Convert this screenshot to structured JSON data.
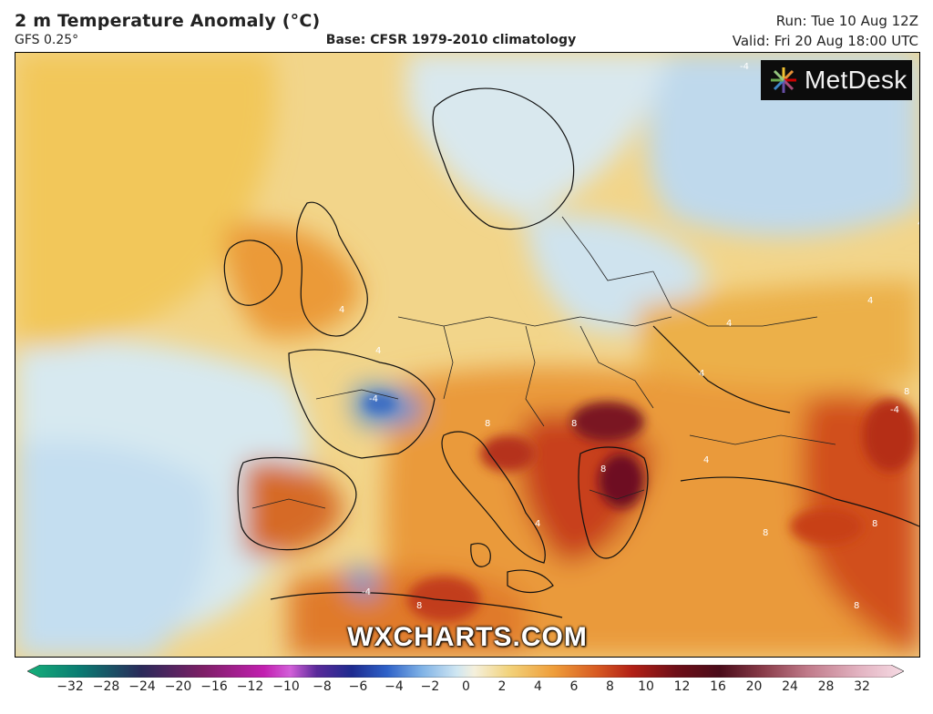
{
  "header": {
    "title": "2 m Temperature Anomaly (°C)",
    "model": "GFS 0.25°",
    "base": "Base: CFSR 1979-2010 climatology",
    "run": "Run: Tue 10 Aug 12Z",
    "valid": "Valid: Fri 20 Aug 18:00 UTC"
  },
  "map": {
    "brand": "MetDesk",
    "watermark": "WXCHARTS.COM",
    "contour_labels": [
      "-4",
      "-4",
      "-4",
      "4",
      "4",
      "4",
      "4",
      "4",
      "8",
      "8",
      "8",
      "8",
      "8",
      "8",
      "8",
      "4",
      "4",
      "8",
      "4",
      "-4"
    ]
  },
  "legend": {
    "ticks": [
      "−32",
      "−28",
      "−24",
      "−20",
      "−16",
      "−12",
      "−10",
      "−8",
      "−6",
      "−4",
      "−2",
      "0",
      "2",
      "4",
      "6",
      "8",
      "10",
      "12",
      "16",
      "20",
      "24",
      "28",
      "32"
    ],
    "colors": {
      "cold_end": "#1fae86",
      "blue": "#2e54c8",
      "light_blue": "#cfe6f2",
      "neutral": "#f1f1e6",
      "yellow": "#f2c64a",
      "orange": "#e8892a",
      "red": "#c72f19",
      "dark_red": "#6a0f1a",
      "warm_end": "#f2c9d6"
    }
  }
}
